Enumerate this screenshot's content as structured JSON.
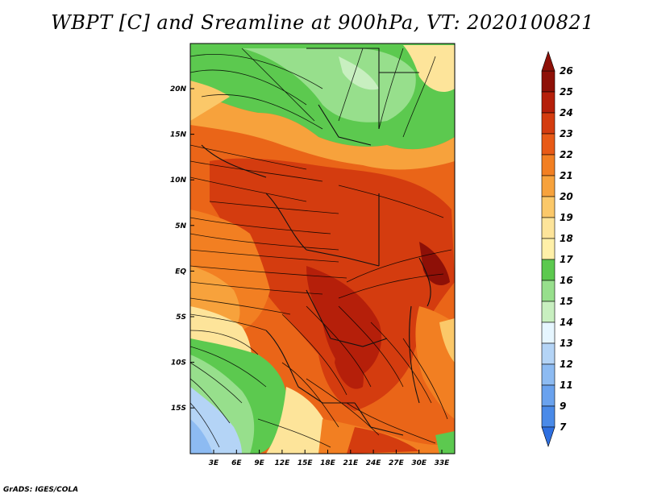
{
  "title": "WBPT [C] and Sreamline at 900hPa, VT: 2020100821",
  "footer": "GrADS: IGES/COLA",
  "map": {
    "x_ticks": [
      "3E",
      "6E",
      "9E",
      "12E",
      "15E",
      "18E",
      "21E",
      "24E",
      "27E",
      "30E",
      "33E"
    ],
    "y_ticks": [
      "20N",
      "15N",
      "10N",
      "5N",
      "EQ",
      "5S",
      "10S",
      "15S"
    ]
  },
  "colorbar": {
    "levels": [
      "7",
      "9",
      "11",
      "12",
      "13",
      "14",
      "15",
      "16",
      "17",
      "18",
      "19",
      "20",
      "21",
      "22",
      "23",
      "24",
      "25",
      "26"
    ],
    "colors": [
      "#2e6fe0",
      "#4a8ae8",
      "#6aa2ee",
      "#8dbbf2",
      "#b4d4f6",
      "#e6f6ff",
      "#c8efc0",
      "#97df8c",
      "#5cc94f",
      "#fff0a8",
      "#fde49a",
      "#fbc869",
      "#f7a23c",
      "#f27f22",
      "#e85a16",
      "#d43c0f",
      "#b51f0a",
      "#8e1007"
    ]
  }
}
